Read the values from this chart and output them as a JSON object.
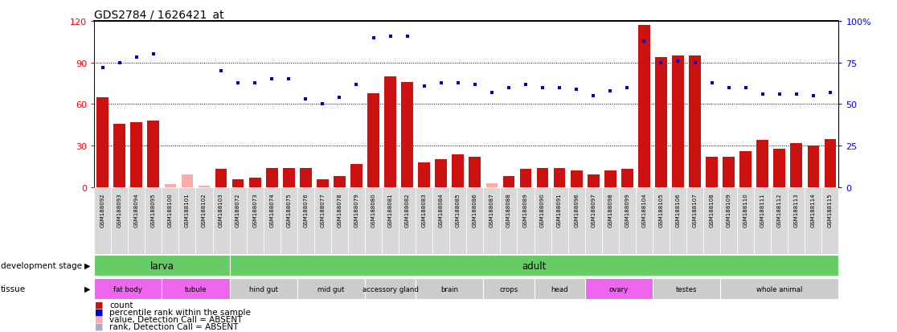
{
  "title": "GDS2784 / 1626421_at",
  "samples": [
    "GSM188092",
    "GSM188093",
    "GSM188094",
    "GSM188095",
    "GSM188100",
    "GSM188101",
    "GSM188102",
    "GSM188103",
    "GSM188072",
    "GSM188073",
    "GSM188074",
    "GSM188075",
    "GSM188076",
    "GSM188077",
    "GSM188078",
    "GSM188079",
    "GSM188080",
    "GSM188081",
    "GSM188082",
    "GSM188083",
    "GSM188084",
    "GSM188085",
    "GSM188086",
    "GSM188087",
    "GSM188088",
    "GSM188089",
    "GSM188090",
    "GSM188091",
    "GSM188096",
    "GSM188097",
    "GSM188098",
    "GSM188099",
    "GSM188104",
    "GSM188105",
    "GSM188106",
    "GSM188107",
    "GSM188108",
    "GSM188109",
    "GSM188110",
    "GSM188111",
    "GSM188112",
    "GSM188113",
    "GSM188114",
    "GSM188115"
  ],
  "counts": [
    65,
    46,
    47,
    48,
    2,
    9,
    1,
    13,
    6,
    7,
    14,
    14,
    14,
    6,
    8,
    17,
    68,
    80,
    76,
    18,
    20,
    24,
    22,
    3,
    8,
    13,
    14,
    14,
    12,
    9,
    12,
    13,
    117,
    94,
    95,
    95,
    22,
    22,
    26,
    34,
    28,
    32,
    30,
    35
  ],
  "ranks": [
    72,
    75,
    78,
    80,
    null,
    null,
    null,
    70,
    63,
    63,
    65,
    65,
    53,
    50,
    54,
    62,
    90,
    91,
    91,
    61,
    63,
    63,
    62,
    57,
    60,
    62,
    60,
    60,
    59,
    55,
    58,
    60,
    88,
    75,
    76,
    75,
    63,
    60,
    60,
    56,
    56,
    56,
    55,
    57
  ],
  "absent_count": [
    false,
    false,
    false,
    false,
    true,
    true,
    true,
    false,
    false,
    false,
    false,
    false,
    false,
    false,
    false,
    false,
    false,
    false,
    false,
    false,
    false,
    false,
    false,
    true,
    false,
    false,
    false,
    false,
    false,
    false,
    false,
    false,
    false,
    false,
    false,
    false,
    false,
    false,
    false,
    false,
    false,
    false,
    false,
    false
  ],
  "absent_rank": [
    false,
    false,
    false,
    false,
    false,
    true,
    true,
    false,
    false,
    false,
    false,
    false,
    false,
    false,
    false,
    false,
    false,
    false,
    false,
    false,
    false,
    false,
    false,
    false,
    false,
    false,
    false,
    false,
    false,
    false,
    false,
    false,
    false,
    false,
    false,
    false,
    false,
    false,
    false,
    false,
    false,
    false,
    false,
    false
  ],
  "tissues": [
    {
      "label": "fat body",
      "start": 0,
      "end": 3,
      "pink": true
    },
    {
      "label": "tubule",
      "start": 4,
      "end": 7,
      "pink": true
    },
    {
      "label": "hind gut",
      "start": 8,
      "end": 11,
      "pink": false
    },
    {
      "label": "mid gut",
      "start": 12,
      "end": 15,
      "pink": false
    },
    {
      "label": "accessory gland",
      "start": 16,
      "end": 18,
      "pink": false
    },
    {
      "label": "brain",
      "start": 19,
      "end": 22,
      "pink": false
    },
    {
      "label": "crops",
      "start": 23,
      "end": 25,
      "pink": false
    },
    {
      "label": "head",
      "start": 26,
      "end": 28,
      "pink": false
    },
    {
      "label": "ovary",
      "start": 29,
      "end": 32,
      "pink": true
    },
    {
      "label": "testes",
      "start": 33,
      "end": 36,
      "pink": false
    },
    {
      "label": "whole animal",
      "start": 37,
      "end": 43,
      "pink": false
    }
  ],
  "bar_color_present": "#cc1111",
  "bar_color_absent": "#ffaaaa",
  "rank_color_present": "#0000cc",
  "rank_color_absent": "#aaaacc",
  "green_color": "#66cc66",
  "tissue_pink": "#ee66ee",
  "tissue_gray": "#cccccc",
  "label_bg": "#d8d8d8"
}
